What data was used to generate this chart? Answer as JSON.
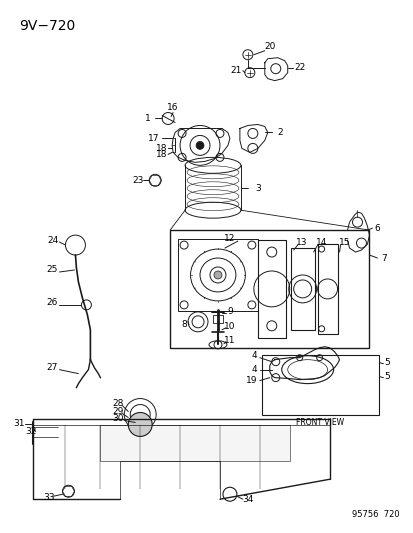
{
  "title": "9V−720",
  "footer": "95756  720",
  "bg_color": "#ffffff",
  "line_color": "#1a1a1a",
  "title_fontsize": 10,
  "label_fontsize": 6.5,
  "footer_fontsize": 6,
  "fig_width": 4.14,
  "fig_height": 5.33,
  "dpi": 100
}
